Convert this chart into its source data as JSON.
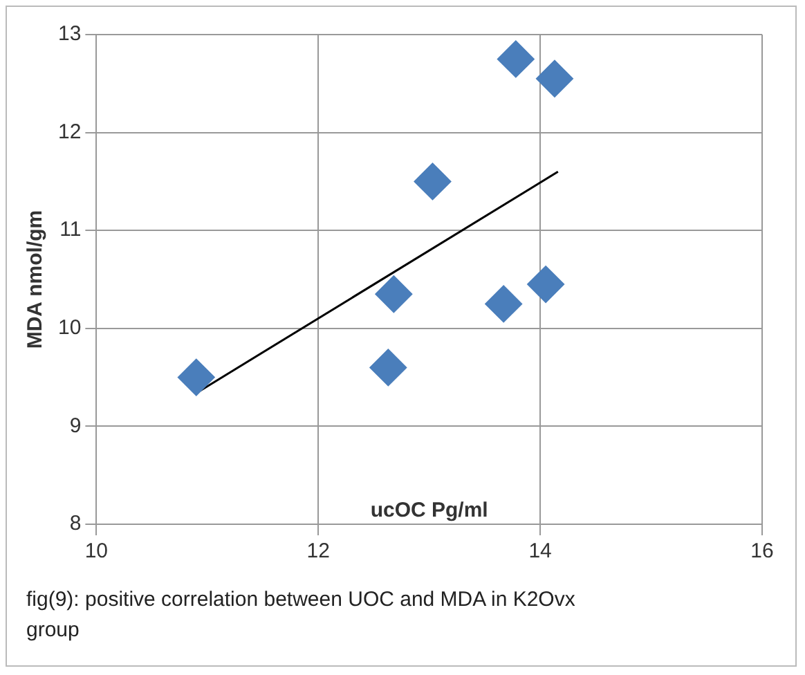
{
  "chart_data": {
    "type": "scatter",
    "xlabel": "ucOC Pg/ml",
    "ylabel": "MDA nmol/gm",
    "annotations": [
      "fig(9): positive correlation between UOC and MDA in K2Ovx group"
    ],
    "series": [
      {
        "color": "#4a7ebb",
        "x": [
          10.9,
          12.63,
          12.68,
          13.03,
          13.67,
          14.05,
          13.78,
          14.13
        ],
        "values": [
          9.5,
          9.6,
          10.35,
          11.5,
          10.25,
          10.45,
          12.75,
          12.55
        ]
      },
      {
        "type": "line",
        "color": "#000000",
        "x": [
          10.93,
          14.16
        ],
        "values": [
          9.36,
          11.6
        ],
        "marker": "none"
      }
    ],
    "marker": "diamond",
    "xlim": [
      10,
      16
    ],
    "xticks": [
      10,
      12,
      14,
      16
    ],
    "ylim": [
      8,
      13
    ],
    "yticks": [
      8,
      9,
      10,
      11,
      12,
      13
    ],
    "grid": true,
    "legend": false
  }
}
